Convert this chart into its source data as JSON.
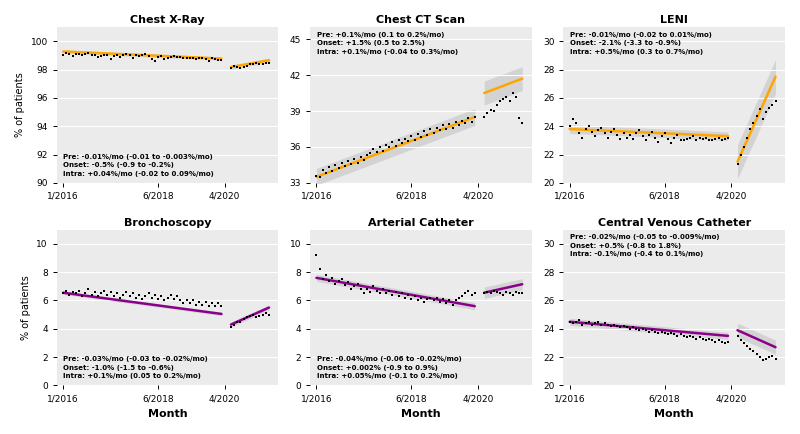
{
  "panels": [
    {
      "title": "Chest X-Ray",
      "ylim": [
        90,
        101
      ],
      "yticks": [
        90,
        92,
        94,
        96,
        98,
        100
      ],
      "line_color": "#FFA500",
      "annotation": "Pre: -0.01%/mo (-0.01 to -0.003%/mo)\nOnset: -0.5% (-0.9 to -0.2%)\nIntra: +0.04%/mo (-0.02 to 0.09%/mo)",
      "annot_loc": "lower left",
      "pre_band": 0.12,
      "intra_band": 0.15,
      "scatter_x_pre": [
        0,
        1,
        2,
        3,
        4,
        5,
        6,
        7,
        8,
        9,
        10,
        11,
        12,
        13,
        14,
        15,
        16,
        17,
        18,
        19,
        20,
        21,
        22,
        23,
        24,
        25,
        26,
        27,
        28,
        29,
        30,
        31,
        32,
        33,
        34,
        35,
        36,
        37,
        38,
        39,
        40,
        41,
        42,
        43,
        44,
        45,
        46,
        47,
        48,
        49,
        50
      ],
      "scatter_y_pre": [
        99.05,
        99.15,
        99.1,
        98.95,
        99.12,
        99.08,
        99.0,
        99.1,
        99.18,
        99.02,
        99.0,
        98.92,
        98.98,
        99.05,
        99.0,
        98.72,
        98.98,
        99.02,
        98.9,
        99.0,
        99.08,
        99.0,
        98.85,
        99.05,
        98.98,
        99.02,
        99.08,
        98.98,
        98.72,
        98.62,
        98.88,
        98.98,
        98.72,
        98.82,
        98.88,
        98.98,
        98.88,
        98.88,
        98.82,
        98.8,
        98.8,
        98.8,
        98.72,
        98.8,
        98.8,
        98.72,
        98.62,
        98.8,
        98.72,
        98.7,
        98.7
      ],
      "scatter_x_intra": [
        53,
        54,
        55,
        56,
        57,
        58,
        59,
        60,
        61,
        62,
        63,
        64,
        65
      ],
      "scatter_y_intra": [
        98.12,
        98.28,
        98.18,
        98.12,
        98.2,
        98.28,
        98.38,
        98.38,
        98.45,
        98.38,
        98.38,
        98.48,
        98.5
      ],
      "pre_line_x": [
        0,
        50
      ],
      "pre_line_y": [
        99.28,
        98.78
      ],
      "intra_line_x": [
        53,
        65
      ],
      "intra_line_y": [
        98.18,
        98.66
      ]
    },
    {
      "title": "Chest CT Scan",
      "ylim": [
        33,
        46
      ],
      "yticks": [
        33,
        36,
        39,
        42,
        45
      ],
      "line_color": "#FFA500",
      "annotation": "Pre: +0.1%/mo (0.1 to 0.2%/mo)\nOnset: +1.5% (0.5 to 2.5%)\nIntra: +0.1%/mo (-0.04 to 0.3%/mo)",
      "annot_loc": "upper left",
      "pre_band": 0.7,
      "intra_band": 1.0,
      "scatter_x_pre": [
        0,
        1,
        2,
        3,
        4,
        5,
        6,
        7,
        8,
        9,
        10,
        11,
        12,
        13,
        14,
        15,
        16,
        17,
        18,
        19,
        20,
        21,
        22,
        23,
        24,
        25,
        26,
        27,
        28,
        29,
        30,
        31,
        32,
        33,
        34,
        35,
        36,
        37,
        38,
        39,
        40,
        41,
        42,
        43,
        44,
        45,
        46,
        47,
        48,
        49,
        50
      ],
      "scatter_y_pre": [
        33.6,
        33.5,
        34.1,
        33.8,
        34.3,
        34.0,
        34.5,
        34.2,
        34.7,
        34.4,
        34.8,
        34.6,
        35.0,
        34.7,
        35.2,
        34.9,
        35.3,
        35.5,
        35.8,
        35.6,
        36.0,
        35.7,
        36.2,
        36.0,
        36.4,
        36.1,
        36.6,
        36.3,
        36.7,
        36.5,
        36.9,
        36.6,
        37.1,
        36.8,
        37.3,
        37.0,
        37.5,
        37.2,
        37.6,
        37.4,
        37.8,
        37.5,
        37.9,
        37.6,
        38.1,
        37.8,
        38.2,
        38.0,
        38.4,
        38.1,
        38.5
      ],
      "scatter_x_intra": [
        53,
        54,
        55,
        56,
        57,
        58,
        59,
        60,
        61,
        62,
        63,
        64,
        65
      ],
      "scatter_y_intra": [
        38.5,
        38.8,
        39.1,
        39.0,
        39.5,
        39.8,
        40.0,
        40.2,
        39.8,
        40.5,
        40.2,
        38.4,
        38.0
      ],
      "pre_line_x": [
        0,
        50
      ],
      "pre_line_y": [
        33.5,
        38.5
      ],
      "intra_line_x": [
        53,
        65
      ],
      "intra_line_y": [
        40.5,
        41.7
      ]
    },
    {
      "title": "LENI",
      "ylim": [
        20,
        31
      ],
      "yticks": [
        20,
        22,
        24,
        26,
        28,
        30
      ],
      "line_color": "#FFA500",
      "annotation": "Pre: -0.01%/mo (-0.02 to 0.01%/mo)\nOnset: -2.1% (-3.3 to -0.9%)\nIntra: +0.5%/mo (0.3 to 0.7%/mo)",
      "annot_loc": "upper left",
      "pre_band": 0.3,
      "intra_band": 1.2,
      "scatter_x_pre": [
        0,
        1,
        2,
        3,
        4,
        5,
        6,
        7,
        8,
        9,
        10,
        11,
        12,
        13,
        14,
        15,
        16,
        17,
        18,
        19,
        20,
        21,
        22,
        23,
        24,
        25,
        26,
        27,
        28,
        29,
        30,
        31,
        32,
        33,
        34,
        35,
        36,
        37,
        38,
        39,
        40,
        41,
        42,
        43,
        44,
        45,
        46,
        47,
        48,
        49,
        50
      ],
      "scatter_y_pre": [
        24.0,
        24.5,
        24.2,
        23.5,
        23.2,
        23.8,
        24.0,
        23.6,
        23.3,
        23.7,
        23.9,
        23.5,
        23.2,
        23.6,
        23.8,
        23.4,
        23.1,
        23.5,
        23.2,
        23.4,
        23.1,
        23.5,
        23.7,
        23.3,
        23.0,
        23.4,
        23.6,
        23.2,
        22.9,
        23.3,
        23.5,
        23.1,
        22.8,
        23.2,
        23.4,
        23.0,
        23.0,
        23.1,
        23.2,
        23.3,
        23.0,
        23.2,
        23.1,
        23.2,
        23.0,
        23.0,
        23.1,
        23.2,
        23.0,
        23.1,
        23.2
      ],
      "scatter_x_intra": [
        53,
        54,
        55,
        56,
        57,
        58,
        59,
        60,
        61,
        62,
        63,
        64,
        65
      ],
      "scatter_y_intra": [
        21.3,
        22.0,
        22.5,
        23.2,
        23.8,
        24.2,
        24.7,
        25.2,
        24.5,
        25.0,
        25.3,
        25.5,
        25.8
      ],
      "pre_line_x": [
        0,
        50
      ],
      "pre_line_y": [
        23.8,
        23.3
      ],
      "intra_line_x": [
        53,
        65
      ],
      "intra_line_y": [
        21.5,
        27.5
      ]
    },
    {
      "title": "Bronchoscopy",
      "ylim": [
        0,
        11
      ],
      "yticks": [
        0,
        2,
        4,
        6,
        8,
        10
      ],
      "line_color": "#8B008B",
      "annotation": "Pre: -0.03%/mo (-0.03 to -0.02%/mo)\nOnset: -1.0% (-1.5 to -0.6%)\nIntra: +0.1%/mo (0.05 to 0.2%/mo)",
      "annot_loc": "lower left",
      "pre_band": 0.12,
      "intra_band": 0.18,
      "scatter_x_pre": [
        0,
        1,
        2,
        3,
        4,
        5,
        6,
        7,
        8,
        9,
        10,
        11,
        12,
        13,
        14,
        15,
        16,
        17,
        18,
        19,
        20,
        21,
        22,
        23,
        24,
        25,
        26,
        27,
        28,
        29,
        30,
        31,
        32,
        33,
        34,
        35,
        36,
        37,
        38,
        39,
        40,
        41,
        42,
        43,
        44,
        45,
        46,
        47,
        48,
        49,
        50
      ],
      "scatter_y_pre": [
        6.5,
        6.7,
        6.4,
        6.6,
        6.5,
        6.7,
        6.3,
        6.5,
        6.8,
        6.4,
        6.6,
        6.3,
        6.5,
        6.7,
        6.4,
        6.6,
        6.3,
        6.5,
        6.2,
        6.4,
        6.6,
        6.3,
        6.5,
        6.2,
        6.4,
        6.1,
        6.3,
        6.5,
        6.2,
        6.4,
        6.1,
        6.3,
        6.0,
        6.2,
        6.4,
        6.1,
        6.3,
        6.0,
        5.8,
        6.0,
        5.8,
        6.0,
        5.7,
        5.9,
        5.7,
        5.9,
        5.6,
        5.8,
        5.6,
        5.8,
        5.6
      ],
      "scatter_x_intra": [
        53,
        54,
        55,
        56,
        57,
        58,
        59,
        60,
        61,
        62,
        63,
        64,
        65
      ],
      "scatter_y_intra": [
        4.1,
        4.3,
        4.5,
        4.5,
        4.7,
        4.8,
        4.9,
        5.0,
        4.8,
        4.9,
        5.0,
        5.1,
        5.0
      ],
      "pre_line_x": [
        0,
        50
      ],
      "pre_line_y": [
        6.55,
        5.05
      ],
      "intra_line_x": [
        53,
        65
      ],
      "intra_line_y": [
        4.3,
        5.5
      ]
    },
    {
      "title": "Arterial Catheter",
      "ylim": [
        0,
        11
      ],
      "yticks": [
        0,
        2,
        4,
        6,
        8,
        10
      ],
      "line_color": "#8B008B",
      "annotation": "Pre: -0.04%/mo (-0.06 to -0.02%/mo)\nOnset: +0.002% (-0.9 to 0.9%)\nIntra: +0.05%/mo (-0.1 to 0.2%/mo)",
      "annot_loc": "lower left",
      "pre_band": 0.25,
      "intra_band": 0.4,
      "scatter_x_pre": [
        0,
        1,
        2,
        3,
        4,
        5,
        6,
        7,
        8,
        9,
        10,
        11,
        12,
        13,
        14,
        15,
        16,
        17,
        18,
        19,
        20,
        21,
        22,
        23,
        24,
        25,
        26,
        27,
        28,
        29,
        30,
        31,
        32,
        33,
        34,
        35,
        36,
        37,
        38,
        39,
        40,
        41,
        42,
        43,
        44,
        45,
        46,
        47,
        48,
        49,
        50
      ],
      "scatter_y_pre": [
        9.2,
        8.2,
        7.5,
        7.8,
        7.4,
        7.6,
        7.2,
        7.4,
        7.5,
        7.1,
        7.3,
        6.8,
        7.0,
        7.2,
        6.8,
        6.5,
        6.8,
        6.6,
        7.0,
        6.7,
        6.5,
        6.8,
        6.5,
        6.7,
        6.4,
        6.6,
        6.3,
        6.5,
        6.2,
        6.4,
        6.1,
        6.3,
        6.0,
        6.2,
        5.9,
        6.1,
        6.2,
        6.0,
        6.2,
        5.9,
        6.1,
        5.8,
        6.0,
        5.7,
        6.0,
        6.2,
        6.3,
        6.5,
        6.7,
        6.4,
        6.5
      ],
      "scatter_x_intra": [
        53,
        54,
        55,
        56,
        57,
        58,
        59,
        60,
        61,
        62,
        63,
        64,
        65
      ],
      "scatter_y_intra": [
        6.5,
        6.6,
        6.5,
        6.7,
        6.6,
        6.5,
        6.4,
        6.6,
        6.5,
        6.4,
        6.6,
        6.5,
        6.5
      ],
      "pre_line_x": [
        0,
        50
      ],
      "pre_line_y": [
        7.6,
        5.6
      ],
      "intra_line_x": [
        53,
        65
      ],
      "intra_line_y": [
        6.55,
        7.15
      ]
    },
    {
      "title": "Central Venous Catheter",
      "ylim": [
        20,
        31
      ],
      "yticks": [
        20,
        22,
        24,
        26,
        28,
        30
      ],
      "line_color": "#8B008B",
      "annotation": "Pre: -0.02%/mo (-0.05 to -0.009%/mo)\nOnset: +0.5% (-0.8 to 1.8%)\nIntra: -0.1%/mo (-0.4 to 0.1%/mo)",
      "annot_loc": "upper left",
      "pre_band": 0.25,
      "intra_band": 0.5,
      "scatter_x_pre": [
        0,
        1,
        2,
        3,
        4,
        5,
        6,
        7,
        8,
        9,
        10,
        11,
        12,
        13,
        14,
        15,
        16,
        17,
        18,
        19,
        20,
        21,
        22,
        23,
        24,
        25,
        26,
        27,
        28,
        29,
        30,
        31,
        32,
        33,
        34,
        35,
        36,
        37,
        38,
        39,
        40,
        41,
        42,
        43,
        44,
        45,
        46,
        47,
        48,
        49,
        50
      ],
      "scatter_y_pre": [
        24.5,
        24.4,
        24.5,
        24.6,
        24.3,
        24.4,
        24.5,
        24.3,
        24.4,
        24.5,
        24.3,
        24.4,
        24.3,
        24.2,
        24.3,
        24.2,
        24.1,
        24.2,
        24.1,
        24.0,
        24.1,
        24.0,
        23.9,
        24.0,
        23.9,
        23.8,
        23.9,
        23.8,
        23.7,
        23.8,
        23.7,
        23.6,
        23.7,
        23.6,
        23.5,
        23.6,
        23.5,
        23.4,
        23.5,
        23.4,
        23.3,
        23.4,
        23.3,
        23.2,
        23.3,
        23.2,
        23.1,
        23.2,
        23.1,
        23.0,
        23.1
      ],
      "scatter_x_intra": [
        53,
        54,
        55,
        56,
        57,
        58,
        59,
        60,
        61,
        62,
        63,
        64,
        65
      ],
      "scatter_y_intra": [
        23.5,
        23.2,
        23.0,
        22.8,
        22.6,
        22.4,
        22.2,
        22.0,
        21.8,
        21.9,
        22.0,
        22.1,
        21.9
      ],
      "pre_line_x": [
        0,
        50
      ],
      "pre_line_y": [
        24.5,
        23.5
      ],
      "intra_line_x": [
        53,
        65
      ],
      "intra_line_y": [
        23.9,
        22.7
      ]
    }
  ],
  "xlim": [
    -2,
    68
  ],
  "xtick_positions": [
    0,
    30,
    51
  ],
  "xtick_labels": [
    "1/2016",
    "6/2018",
    "4/2020"
  ],
  "xlabel": "Month",
  "ylabel": "% of patients",
  "bg_color": "#EBEBEB",
  "band_color": "#C0C0C0",
  "band_alpha": 0.55
}
